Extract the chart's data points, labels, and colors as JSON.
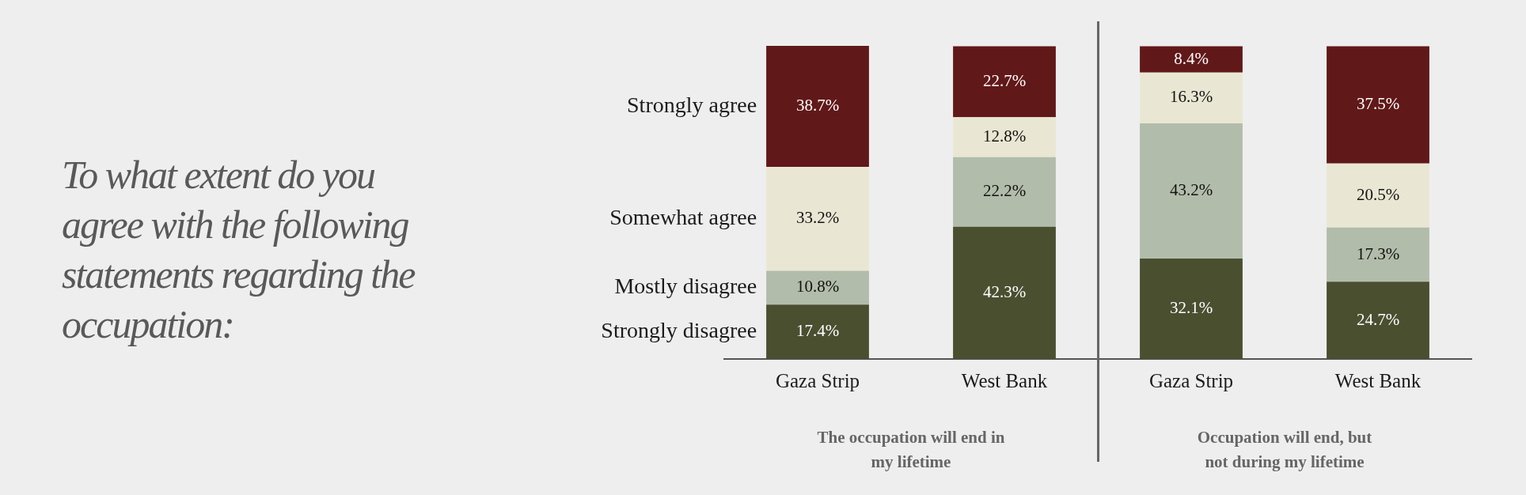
{
  "chart_data": {
    "type": "bar",
    "title": "To what extent do you agree with the following statements regarding the occupation:",
    "categories": [
      "Gaza Strip",
      "West Bank",
      "Gaza Strip",
      "West Bank"
    ],
    "stacked": true,
    "tick_labels": "x",
    "annotations": [
      "The occupation will end in my lifetime",
      "Occupation will end, but not during my lifetime"
    ],
    "series": [
      {
        "name": "Strongly disagree",
        "color": "#4a4f30",
        "values": [
          17.4,
          42.3,
          32.1,
          24.7
        ],
        "value_labels": [
          "17.4%",
          "42.3%",
          "32.1%",
          "24.7%"
        ]
      },
      {
        "name": "Mostly disagree",
        "color": "#b2bcaa",
        "values": [
          10.8,
          22.2,
          43.2,
          17.3
        ],
        "value_labels": [
          "10.8%",
          "22.2%",
          "43.2%",
          "17.3%"
        ]
      },
      {
        "name": "Somewhat agree",
        "color": "#e9e7d3",
        "values": [
          33.2,
          12.8,
          16.3,
          20.5
        ],
        "value_labels": [
          "33.2%",
          "12.8%",
          "16.3%",
          "20.5%"
        ]
      },
      {
        "name": "Strongly agree",
        "color": "#611818",
        "values": [
          38.7,
          22.7,
          8.4,
          37.5
        ],
        "value_labels": [
          "38.7%",
          "22.7%",
          "8.4%",
          "37.5%"
        ]
      }
    ]
  }
}
